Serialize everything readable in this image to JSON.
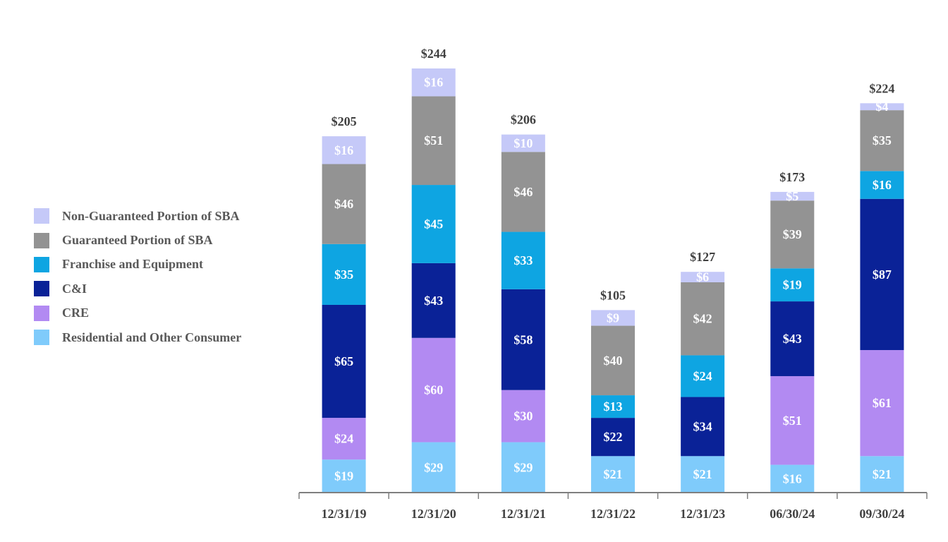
{
  "chart_data": {
    "type": "bar",
    "stacked": true,
    "title": "",
    "xlabel": "",
    "ylabel": "",
    "ylim": [
      0,
      250
    ],
    "grid": false,
    "legend_position": "left",
    "categories": [
      "12/31/19",
      "12/31/20",
      "12/31/21",
      "12/31/22",
      "12/31/23",
      "06/30/24",
      "09/30/24"
    ],
    "totals": [
      205,
      244,
      206,
      105,
      127,
      173,
      224
    ],
    "total_labels": [
      "$205",
      "$244",
      "$206",
      "$105",
      "$127",
      "$173",
      "$224"
    ],
    "series": [
      {
        "name": "Residential and Other Consumer",
        "color": "#7fcbfb",
        "values": [
          19,
          29,
          29,
          21,
          21,
          16,
          21
        ],
        "labels": [
          "$19",
          "$29",
          "$29",
          "$21",
          "$21",
          "$16",
          "$21"
        ]
      },
      {
        "name": "CRE",
        "color": "#b28af2",
        "values": [
          24,
          60,
          30,
          0,
          0,
          51,
          61
        ],
        "labels": [
          "$24",
          "$60",
          "$30",
          "",
          "",
          "$51",
          "$61"
        ]
      },
      {
        "name": "C&I",
        "color": "#0a2297",
        "values": [
          65,
          43,
          58,
          22,
          34,
          43,
          87
        ],
        "labels": [
          "$65",
          "$43",
          "$58",
          "$22",
          "$34",
          "$43",
          "$87"
        ]
      },
      {
        "name": "Franchise and Equipment",
        "color": "#0ea5e2",
        "values": [
          35,
          45,
          33,
          13,
          24,
          19,
          16
        ],
        "labels": [
          "$35",
          "$45",
          "$33",
          "$13",
          "$24",
          "$19",
          "$16"
        ]
      },
      {
        "name": "Guaranteed Portion of SBA",
        "color": "#939393",
        "values": [
          46,
          51,
          46,
          40,
          42,
          39,
          35
        ],
        "labels": [
          "$46",
          "$51",
          "$46",
          "$40",
          "$42",
          "$39",
          "$35"
        ]
      },
      {
        "name": "Non-Guaranteed Portion of SBA",
        "color": "#c5c9f8",
        "values": [
          16,
          16,
          10,
          9,
          6,
          5,
          4
        ],
        "labels": [
          "$16",
          "$16",
          "$10",
          "$9",
          "$6",
          "$5",
          "$4"
        ]
      }
    ],
    "legend": [
      {
        "name": "Non-Guaranteed Portion of SBA",
        "color": "#c5c9f8"
      },
      {
        "name": "Guaranteed Portion of SBA",
        "color": "#939393"
      },
      {
        "name": "Franchise and Equipment",
        "color": "#0ea5e2"
      },
      {
        "name": "C&I",
        "color": "#0a2297"
      },
      {
        "name": "CRE",
        "color": "#b28af2"
      },
      {
        "name": "Residential and Other Consumer",
        "color": "#7fcbfb"
      }
    ]
  }
}
